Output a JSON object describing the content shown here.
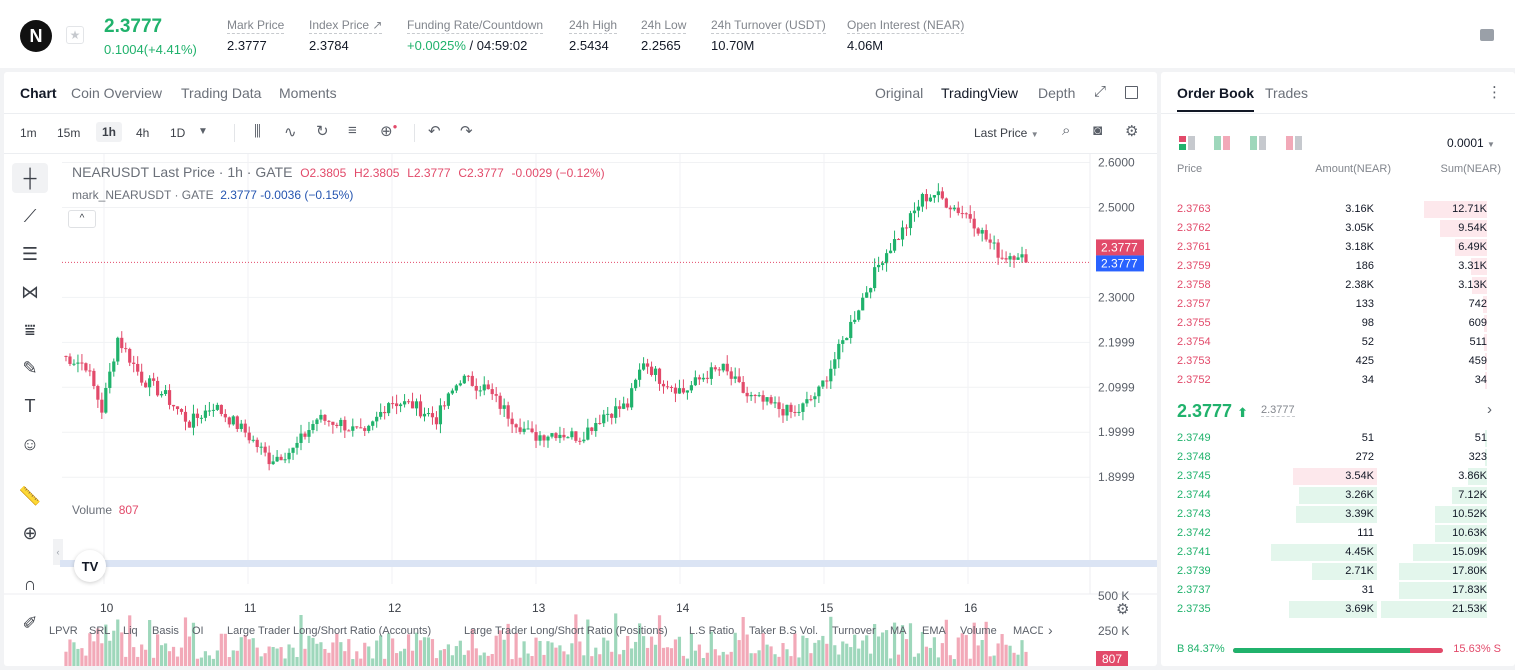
{
  "header": {
    "logo": "N",
    "last_price": "2.3777",
    "change": "0.1004(+4.41%)",
    "stats": [
      {
        "label": "Mark Price",
        "value": "2.3777"
      },
      {
        "label": "Index Price ↗",
        "value": "2.3784"
      },
      {
        "label": "Funding Rate/Countdown",
        "value_green": "+0.0025%",
        "value": " / 04:59:02"
      },
      {
        "label": "24h High",
        "value": "2.5434"
      },
      {
        "label": "24h Low",
        "value": "2.2565"
      },
      {
        "label": "24h Turnover (USDT)",
        "value": "10.70M"
      },
      {
        "label": "Open Interest (NEAR)",
        "value": "4.06M"
      }
    ]
  },
  "chart_panel": {
    "tabs": [
      "Chart",
      "Coin Overview",
      "Trading Data",
      "Moments"
    ],
    "views": [
      "Original",
      "TradingView",
      "Depth"
    ],
    "intervals": [
      "1m",
      "15m",
      "1h",
      "4h",
      "1D"
    ],
    "price_type": "Last Price",
    "legend": {
      "title": "NEARUSDT Last Price · 1h · GATE",
      "o": "O2.3805",
      "h": "H2.3805",
      "l": "L2.3777",
      "c": "C2.3777",
      "chg": "-0.0029 (−0.12%)",
      "mark": "mark_NEARUSDT · GATE",
      "mark_val": "2.3777 -0.0036 (−0.15%)"
    },
    "volume_label": "Volume",
    "volume_value": "807",
    "indicators": [
      "LPVR",
      "SRL",
      "Liq",
      "Basis",
      "OI",
      "Large Trader Long/Short Ratio (Accounts)",
      "Large Trader Long/Short Ratio (Positions)",
      "L.S Ratio",
      "Taker B.S Vol.",
      "Turnover",
      "MA",
      "EMA",
      "Volume",
      "MACD"
    ]
  },
  "chart_data": {
    "type": "candlestick",
    "x_ticks": [
      "10",
      "11",
      "12",
      "13",
      "14",
      "15",
      "16"
    ],
    "y_ticks": [
      "2.6000",
      "2.5000",
      "2.3000",
      "2.1999",
      "2.0999",
      "1.9999",
      "1.8999"
    ],
    "price_labels": {
      "last": "2.3777",
      "mark": "2.3777"
    },
    "volume_ticks": [
      "500 K",
      "250 K"
    ],
    "volume_last": "807",
    "anchors": [
      [
        0,
        2.17
      ],
      [
        6,
        2.15
      ],
      [
        10,
        2.05
      ],
      [
        14,
        2.21
      ],
      [
        20,
        2.12
      ],
      [
        26,
        2.08
      ],
      [
        32,
        2.02
      ],
      [
        38,
        2.06
      ],
      [
        46,
        2.0
      ],
      [
        52,
        1.94
      ],
      [
        58,
        1.96
      ],
      [
        64,
        2.03
      ],
      [
        70,
        2.02
      ],
      [
        76,
        1.99
      ],
      [
        82,
        2.07
      ],
      [
        88,
        2.06
      ],
      [
        94,
        2.03
      ],
      [
        100,
        2.12
      ],
      [
        106,
        2.1
      ],
      [
        112,
        2.04
      ],
      [
        118,
        1.99
      ],
      [
        124,
        2.0
      ],
      [
        130,
        1.99
      ],
      [
        136,
        2.04
      ],
      [
        142,
        2.06
      ],
      [
        146,
        2.16
      ],
      [
        150,
        2.12
      ],
      [
        156,
        2.09
      ],
      [
        162,
        2.13
      ],
      [
        166,
        2.14
      ],
      [
        172,
        2.08
      ],
      [
        178,
        2.06
      ],
      [
        184,
        2.04
      ],
      [
        190,
        2.09
      ],
      [
        196,
        2.2
      ],
      [
        200,
        2.28
      ],
      [
        206,
        2.39
      ],
      [
        212,
        2.46
      ],
      [
        216,
        2.52
      ],
      [
        219,
        2.53
      ],
      [
        224,
        2.5
      ],
      [
        228,
        2.48
      ],
      [
        232,
        2.43
      ],
      [
        236,
        2.39
      ],
      [
        240,
        2.4
      ],
      [
        242,
        2.378
      ]
    ]
  },
  "orderbook": {
    "tabs": [
      "Order Book",
      "Trades"
    ],
    "precision": "0.0001",
    "headers": [
      "Price",
      "Amount(NEAR)",
      "Sum(NEAR)"
    ],
    "asks": [
      [
        "2.3763",
        "3.16K",
        "12.71K"
      ],
      [
        "2.3762",
        "3.05K",
        "9.54K"
      ],
      [
        "2.3761",
        "3.18K",
        "6.49K"
      ],
      [
        "2.3759",
        "186",
        "3.31K"
      ],
      [
        "2.3758",
        "2.38K",
        "3.13K"
      ],
      [
        "2.3757",
        "133",
        "742"
      ],
      [
        "2.3755",
        "98",
        "609"
      ],
      [
        "2.3754",
        "52",
        "511"
      ],
      [
        "2.3753",
        "425",
        "459"
      ],
      [
        "2.3752",
        "34",
        "34"
      ]
    ],
    "mid_price": "2.3777",
    "mid_mark": "2.3777",
    "bids": [
      [
        "2.3749",
        "51",
        "51"
      ],
      [
        "2.3748",
        "272",
        "323"
      ],
      [
        "2.3745",
        "3.54K",
        "3.86K"
      ],
      [
        "2.3744",
        "3.26K",
        "7.12K"
      ],
      [
        "2.3743",
        "3.39K",
        "10.52K"
      ],
      [
        "2.3742",
        "111",
        "10.63K"
      ],
      [
        "2.3741",
        "4.45K",
        "15.09K"
      ],
      [
        "2.3739",
        "2.71K",
        "17.80K"
      ],
      [
        "2.3737",
        "31",
        "17.83K"
      ],
      [
        "2.3735",
        "3.69K",
        "21.53K"
      ]
    ],
    "buy_pct": "B 84.37%",
    "sell_pct": "15.63% S",
    "buy_ratio": 0.8437,
    "colors": {
      "green": "#20b26c",
      "red": "#e24a6a"
    }
  }
}
